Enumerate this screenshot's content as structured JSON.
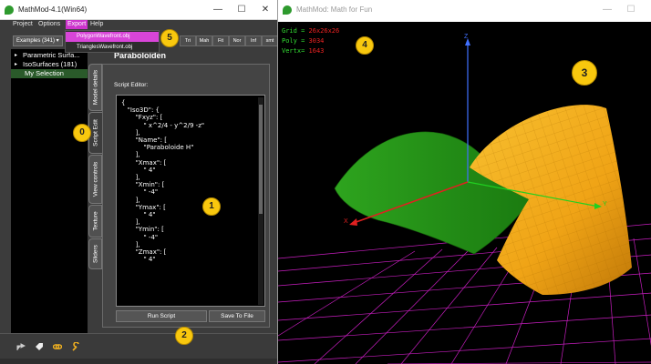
{
  "left_window": {
    "title": "MathMod-4.1(Win64)",
    "controls": {
      "minimize": "—",
      "maximize": "☐",
      "close": "✕"
    },
    "menu": {
      "project": "Project",
      "options": "Options",
      "export": "Export",
      "help": "Help"
    },
    "export_menu": [
      "PolygonWavefront.obj",
      "TrianglesWavefront.obj"
    ],
    "examples_combo": "Examples (341) ▾",
    "toolbar_buttons": [
      "Tri",
      "Mah",
      "Fit",
      "Nor",
      "Inf",
      "smt"
    ],
    "tree": [
      {
        "label": "Parametric Surfa...",
        "expander": "▸"
      },
      {
        "label": "IsoSurfaces (181)",
        "expander": "▸"
      },
      {
        "label": "My Selection",
        "expander": ""
      }
    ],
    "panel_title": "Paraboloiden",
    "vertical_tabs": [
      "Model details",
      "Script Edit",
      "View controls",
      "Texture",
      "Sliders"
    ],
    "script_editor_label": "Script Editor:",
    "script_text": "{\n   \"Iso3D\": {\n       \"Fxyz\": [\n           \" x^2/4 - y^2/9 -z\"\n       ],\n       \"Name\": [\n           \"Paraboloide H\"\n       ],\n       \"Xmax\": [\n           \" 4\"\n       ],\n       \"Xmin\": [\n           \" -4\"\n       ],\n       \"Ymax\": [\n           \" 4\"\n       ],\n       \"Ymin\": [\n           \" -4\"\n       ],\n       \"Zmax\": [\n           \" 4\"",
    "run_button": "Run Script",
    "save_button": "Save To File"
  },
  "right_window": {
    "title": "MathMod: Math for Fun",
    "controls": {
      "minimize": "—",
      "maximize": "☐"
    },
    "hud": {
      "grid_label": "Grid = ",
      "grid_value": "26x26x26",
      "poly_label": "Poly = ",
      "poly_value": "3034",
      "vertx_label": "Vertx= ",
      "vertx_value": "1643"
    },
    "axes": {
      "x": "X",
      "y": "Y",
      "z": "Z"
    }
  },
  "badges": [
    "0",
    "1",
    "2",
    "3",
    "4",
    "5"
  ],
  "colors": {
    "panel_bg": "#3c3c3c",
    "export_highlight": "#d845d8",
    "surface_green": "#2e9a1e",
    "surface_orange": "#f0a818",
    "grid_magenta": "#d020c8",
    "axis_x": "#e02020",
    "axis_y": "#20d020",
    "axis_z": "#4070ff",
    "badge": "#f9c80e"
  }
}
